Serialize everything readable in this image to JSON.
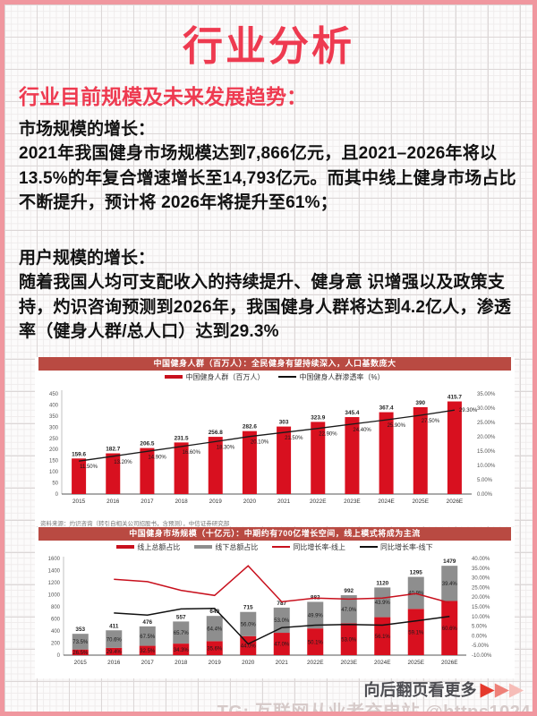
{
  "page": {
    "title": "行业分析",
    "subtitle": "行业目前规模及未来发展趋势："
  },
  "sections": [
    {
      "heading": "市场规模的增长：",
      "body": "2021年我国健身市场规模达到7,866亿元，且2021–2026年将以13.5%的年复合增速增长至14,793亿元。而其中线上健身市场占比不断提升，预计将 2026年将提升至61%；"
    },
    {
      "heading": "用户规模的增长：",
      "body": "随着我国人均可支配收入的持续提升、健身意 识增强以及政策支持，灼识咨询预测到2026年，我国健身人群将达到4.2亿人，渗透率（健身人群/总人口）达到29.3%"
    }
  ],
  "chart_data": [
    {
      "type": "bar",
      "title": "中国健身人群（百万人）：全民健身有望持续深入，人口基数庞大",
      "categories": [
        "2015",
        "2016",
        "2017",
        "2018",
        "2019",
        "2020",
        "2021",
        "2022E",
        "2023E",
        "2024E",
        "2025E",
        "2026E"
      ],
      "series": [
        {
          "name": "中国健身人群（百万人）",
          "kind": "bar",
          "color": "#d8101f",
          "values": [
            159.6,
            182.7,
            206.5,
            231.5,
            256.8,
            282.6,
            303,
            323.9,
            345.4,
            367.4,
            390,
            415.7
          ],
          "labels": [
            "159.6",
            "182.7",
            "206.5",
            "231.5",
            "256.8",
            "282.6",
            "303",
            "323.9",
            "345.4",
            "367.4",
            "390",
            "415.7"
          ]
        },
        {
          "name": "中国健身人群渗透率（%）",
          "kind": "line",
          "color": "#1a1a1a",
          "values": [
            11.5,
            13.2,
            14.9,
            16.6,
            18.3,
            20.1,
            21.5,
            22.9,
            24.4,
            25.9,
            27.5,
            29.3
          ],
          "labels": [
            "11.50%",
            "13.20%",
            "14.90%",
            "16.60%",
            "18.30%",
            "20.10%",
            "21.50%",
            "22.90%",
            "24.40%",
            "25.90%",
            "27.50%",
            "29.30%"
          ]
        }
      ],
      "left_axis": {
        "min": 0,
        "max": 450,
        "step": 50
      },
      "right_axis": {
        "min": 0,
        "max": 35,
        "step": 5,
        "format": "percent"
      },
      "grid": "off",
      "legend_position": "top",
      "source": "资料来源：灼识咨询（转引自相关公司招股书，含预测），中信证券研究部"
    },
    {
      "type": "bar",
      "subtype": "stacked-bar-with-lines",
      "title": "中国健身市场规模（十亿元）：中期约有700亿增长空间，线上模式将成为主流",
      "categories": [
        "2015",
        "2016",
        "2017",
        "2018",
        "2019",
        "2020",
        "2021",
        "2022E",
        "2023E",
        "2024E",
        "2025E",
        "2026E"
      ],
      "totals": [
        353,
        411,
        476,
        557,
        649,
        715,
        787,
        882,
        992,
        1120,
        1295,
        1479
      ],
      "total_labels": [
        "353",
        "411",
        "476",
        "557",
        "649",
        "715",
        "787",
        "882",
        "992",
        "1120",
        "1295",
        "1479"
      ],
      "online_share_pct": [
        26.5,
        29.4,
        32.5,
        34.3,
        35.6,
        44.0,
        47.0,
        50.1,
        53.0,
        56.1,
        59.1,
        60.6
      ],
      "online_share_labels": [
        "26.5%",
        "29.4%",
        "32.5%",
        "34.3%",
        "35.6%",
        "44.0%",
        "47.0%",
        "50.1%",
        "53.0%",
        "56.1%",
        "59.1%",
        "60.6%"
      ],
      "offline_share_pct": [
        73.5,
        70.6,
        67.5,
        65.7,
        64.4,
        56.0,
        53.0,
        49.9,
        47.0,
        43.9,
        40.9,
        39.4
      ],
      "offline_share_labels": [
        "73.5%",
        "70.6%",
        "67.5%",
        "65.7%",
        "64.4%",
        "56.0%",
        "53.0%",
        "49.9%",
        "47.0%",
        "43.9%",
        "40.9%",
        "39.4%"
      ],
      "lines": [
        {
          "name": "同比增长率-线上",
          "color": "#c8101d",
          "values": [
            null,
            29.2,
            28.0,
            23.5,
            20.9,
            36.2,
            17.6,
            19.5,
            19.0,
            19.5,
            21.8,
            17.1
          ]
        },
        {
          "name": "同比增长率-线下",
          "color": "#111111",
          "values": [
            null,
            11.8,
            10.7,
            13.9,
            14.2,
            -4.2,
            4.2,
            5.5,
            5.9,
            5.5,
            7.7,
            10.0
          ]
        }
      ],
      "legend": [
        "线上总额占比",
        "线下总额占比",
        "同比增长率-线上",
        "同比增长率-线下"
      ],
      "colors": {
        "online_bar": "#d8101f",
        "offline_bar": "#8e8e8e"
      },
      "left_axis": {
        "min": 0,
        "max": 1600,
        "step": 200
      },
      "right_axis": {
        "min": -10,
        "max": 40,
        "step": 5,
        "format": "percent"
      },
      "grid": "off",
      "legend_position": "top"
    }
  ],
  "footer": {
    "more_label": "向后翻页看更多",
    "arrow_icon": "▶"
  },
  "watermark": {
    "prefix": "TG: ",
    "name": "互联网从业者充电站",
    "suffix": " @https1024"
  },
  "colors": {
    "accent_red": "#ee3a50",
    "banner_red": "#b94a42",
    "bar_red": "#d8101f",
    "bar_gray": "#8e8e8e",
    "border_pink": "#f0979f"
  }
}
